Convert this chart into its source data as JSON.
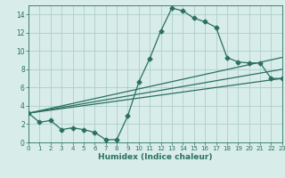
{
  "xlabel": "Humidex (Indice chaleur)",
  "xlim": [
    0,
    23
  ],
  "ylim": [
    0,
    15
  ],
  "xticks": [
    0,
    1,
    2,
    3,
    4,
    5,
    6,
    7,
    8,
    9,
    10,
    11,
    12,
    13,
    14,
    15,
    16,
    17,
    18,
    19,
    20,
    21,
    22,
    23
  ],
  "yticks": [
    0,
    2,
    4,
    6,
    8,
    10,
    12,
    14
  ],
  "bg_color": "#d8ecea",
  "line_color": "#2a7060",
  "grid_color": "#aecfcb",
  "line1_x": [
    0,
    1,
    2,
    3,
    4,
    5,
    6,
    7,
    8,
    9,
    10,
    11,
    12,
    13,
    14,
    15,
    16,
    17,
    18,
    19,
    20,
    21,
    22,
    23
  ],
  "line1_y": [
    3.2,
    2.2,
    2.4,
    1.4,
    1.6,
    1.4,
    1.1,
    0.3,
    0.3,
    2.9,
    6.6,
    9.2,
    12.2,
    14.7,
    14.4,
    13.6,
    13.2,
    12.6,
    9.3,
    8.8,
    8.7,
    8.7,
    7.0,
    7.0
  ],
  "line2_x": [
    0,
    23
  ],
  "line2_y": [
    3.2,
    9.3
  ],
  "line3_x": [
    0,
    23
  ],
  "line3_y": [
    3.2,
    8.0
  ],
  "line4_x": [
    0,
    23
  ],
  "line4_y": [
    3.2,
    7.0
  ]
}
